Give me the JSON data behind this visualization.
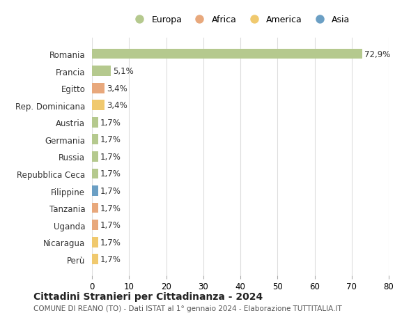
{
  "countries": [
    "Romania",
    "Francia",
    "Egitto",
    "Rep. Dominicana",
    "Austria",
    "Germania",
    "Russia",
    "Repubblica Ceca",
    "Filippine",
    "Tanzania",
    "Uganda",
    "Nicaragua",
    "Perù"
  ],
  "values": [
    72.9,
    5.1,
    3.4,
    3.4,
    1.7,
    1.7,
    1.7,
    1.7,
    1.7,
    1.7,
    1.7,
    1.7,
    1.7
  ],
  "labels": [
    "72,9%",
    "5,1%",
    "3,4%",
    "3,4%",
    "1,7%",
    "1,7%",
    "1,7%",
    "1,7%",
    "1,7%",
    "1,7%",
    "1,7%",
    "1,7%",
    "1,7%"
  ],
  "colors": [
    "#b5c98e",
    "#b5c98e",
    "#e8a87c",
    "#f0c96e",
    "#b5c98e",
    "#b5c98e",
    "#b5c98e",
    "#b5c98e",
    "#6b9fc4",
    "#e8a87c",
    "#e8a87c",
    "#f0c96e",
    "#f0c96e"
  ],
  "categories": [
    "Europa",
    "Africa",
    "America",
    "Asia"
  ],
  "legend_colors": [
    "#b5c98e",
    "#e8a87c",
    "#f0c96e",
    "#6b9fc4"
  ],
  "xlim": [
    0,
    80
  ],
  "xticks": [
    0,
    10,
    20,
    30,
    40,
    50,
    60,
    70,
    80
  ],
  "title": "Cittadini Stranieri per Cittadinanza - 2024",
  "subtitle": "COMUNE DI REANO (TO) - Dati ISTAT al 1° gennaio 2024 - Elaborazione TUTTITALIA.IT",
  "background_color": "#ffffff",
  "grid_color": "#dddddd"
}
